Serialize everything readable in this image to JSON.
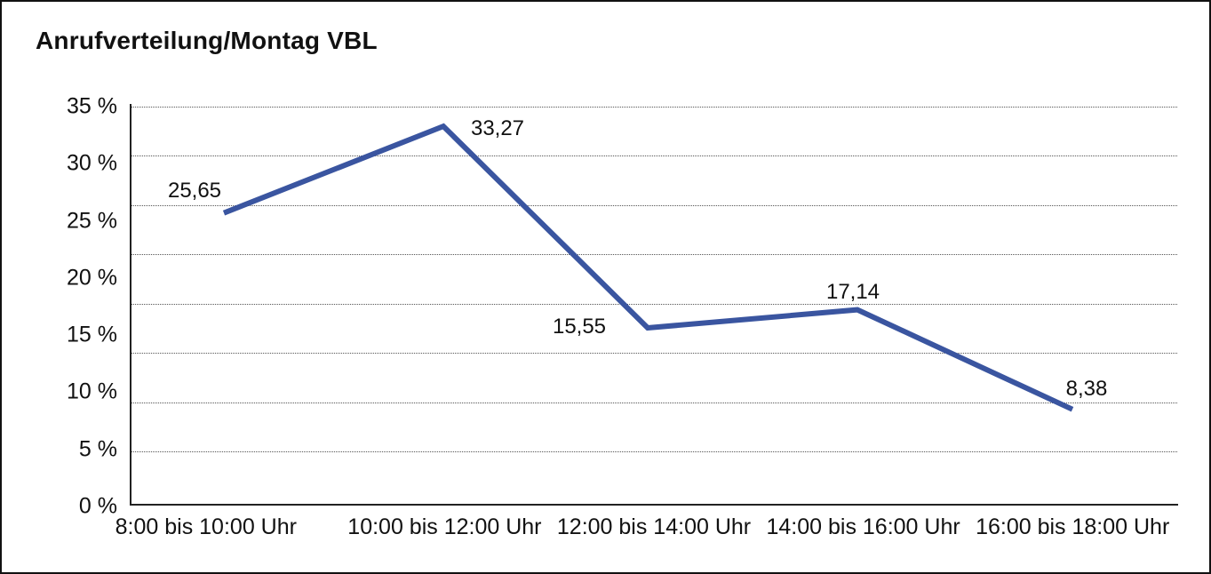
{
  "title": "Anrufverteilung/Montag VBL",
  "colors": {
    "line": "#3A55A0",
    "text": "#111111",
    "grid_dots": "#555555",
    "axis": "#222222",
    "background": "#ffffff",
    "border": "#111111"
  },
  "chart_data": {
    "type": "line",
    "title": "Anrufverteilung/Montag VBL",
    "categories": [
      "8:00 bis 10:00 Uhr",
      "10:00 bis 12:00 Uhr",
      "12:00 bis 14:00 Uhr",
      "14:00 bis 16:00 Uhr",
      "16:00 bis 18:00 Uhr"
    ],
    "values": [
      25.65,
      33.27,
      15.55,
      17.14,
      8.38
    ],
    "value_labels": [
      "25,65",
      "33,27",
      "15,55",
      "17,14",
      "8,38"
    ],
    "xlabel": "",
    "ylabel": "",
    "ylim": [
      0,
      35
    ],
    "yticks": [
      {
        "value": 35,
        "label": "35 %"
      },
      {
        "value": 30,
        "label": "30 %"
      },
      {
        "value": 25,
        "label": "25 %"
      },
      {
        "value": 20,
        "label": "20 %"
      },
      {
        "value": 15,
        "label": "15 %"
      },
      {
        "value": 10,
        "label": "10 %"
      },
      {
        "value": 5,
        "label": "5 %"
      },
      {
        "value": 0,
        "label": "0 %"
      }
    ],
    "grid": "horizontal-dotted",
    "legend": "none",
    "line_color": "#3A55A0"
  }
}
